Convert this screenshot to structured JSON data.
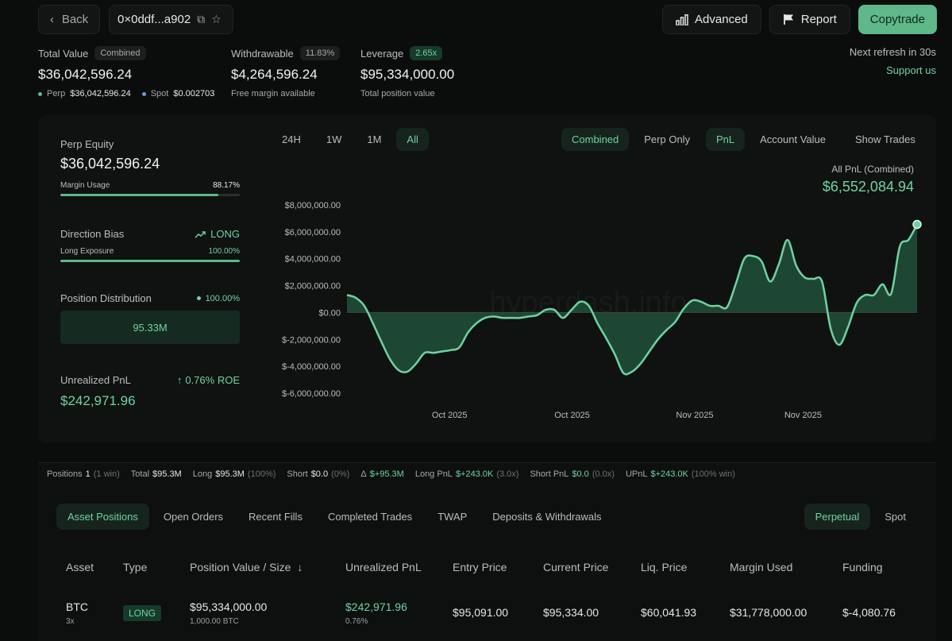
{
  "topbar": {
    "back_label": "Back",
    "address": "0×0ddf...a902",
    "advanced_label": "Advanced",
    "report_label": "Report",
    "copytrade_label": "Copytrade"
  },
  "summary": {
    "total_value_label": "Total Value",
    "total_value_chip": "Combined",
    "total_value": "$36,042,596.24",
    "perp_label": "Perp",
    "perp_value": "$36,042,596.24",
    "spot_label": "Spot",
    "spot_value": "$0.002703",
    "withdrawable_label": "Withdrawable",
    "withdrawable_chip": "11.83%",
    "withdrawable_value": "$4,264,596.24",
    "withdrawable_sub": "Free margin available",
    "leverage_label": "Leverage",
    "leverage_chip": "2.65x",
    "leverage_value": "$95,334,000.00",
    "leverage_sub": "Total position value",
    "refresh_text": "Next refresh in 30s",
    "support_label": "Support us"
  },
  "left_panel": {
    "perp_equity_label": "Perp Equity",
    "perp_equity_value": "$36,042,596.24",
    "margin_usage_label": "Margin Usage",
    "margin_usage_value": "88.17%",
    "margin_usage_fraction": 0.8817,
    "direction_bias_label": "Direction Bias",
    "direction_bias_value": "LONG",
    "long_exposure_label": "Long Exposure",
    "long_exposure_value": "100.00%",
    "long_exposure_fraction": 1.0,
    "position_distribution_label": "Position Distribution",
    "position_distribution_pct": "100.00%",
    "position_distribution_value": "95.33M",
    "unrealized_pnl_label": "Unrealized PnL",
    "roe_value": "0.76% ROE",
    "unrealized_pnl_value": "$242,971.96"
  },
  "chart_controls": {
    "ranges": [
      "24H",
      "1W",
      "1M",
      "All"
    ],
    "active_range": "All",
    "mode_combined": "Combined",
    "mode_perp_only": "Perp Only",
    "metric_pnl": "PnL",
    "metric_account_value": "Account Value",
    "show_trades": "Show Trades",
    "headline_label": "All PnL (Combined)",
    "headline_value": "$6,552,084.94",
    "watermark": "hyperdash.info"
  },
  "chart_data": {
    "type": "area",
    "ylim": [
      -6000000,
      8000000
    ],
    "y_ticks": [
      8000000,
      6000000,
      4000000,
      2000000,
      0,
      -2000000,
      -4000000,
      -6000000
    ],
    "y_tick_labels": [
      "$8,000,000.00",
      "$6,000,000.00",
      "$4,000,000.00",
      "$2,000,000.00",
      "$0.00",
      "$-2,000,000.00",
      "$-4,000,000.00",
      "$-6,000,000.00"
    ],
    "x_tick_labels": [
      "Oct 2025",
      "Oct 2025",
      "Nov 2025",
      "Nov 2025"
    ],
    "x_tick_index": [
      0.18,
      0.395,
      0.61,
      0.8
    ],
    "line_color": "#6fd3a1",
    "series": [
      {
        "values": [
          1300000,
          1100000,
          500000,
          -800000,
          -2200000,
          -3500000,
          -4300000,
          -4400000,
          -3800000,
          -3000000,
          -3000000,
          -2900000,
          -2800000,
          -2600000,
          -1500000,
          -800000,
          -400000,
          -300000,
          -400000,
          -400000,
          -400000,
          -300000,
          -200000,
          200000,
          200000,
          -400000,
          200000,
          800000,
          500000,
          -800000,
          -1900000,
          -3100000,
          -4500000,
          -4400000,
          -3800000,
          -2900000,
          -2000000,
          -1300000,
          -700000,
          300000,
          900000,
          800000,
          500000,
          500000,
          400000,
          2100000,
          4000000,
          4200000,
          3800000,
          2300000,
          3600000,
          5400000,
          3500000,
          2600000,
          2500000,
          2300000,
          -1200000,
          -2400000,
          -1100000,
          700000,
          1300000,
          1300000,
          2100000,
          1400000,
          4900000,
          5400000,
          6550000
        ]
      }
    ]
  },
  "strip": {
    "positions_label": "Positions",
    "positions_value": "1",
    "positions_win": "(1 win)",
    "total_label": "Total",
    "total_value": "$95.3M",
    "long_label": "Long",
    "long_value": "$95.3M",
    "long_pct": "(100%)",
    "short_label": "Short",
    "short_value": "$0.0",
    "short_pct": "(0%)",
    "delta_label": "Δ",
    "delta_value": "$+95.3M",
    "long_pnl_label": "Long PnL",
    "long_pnl_value": "$+243.0K",
    "long_pnl_x": "(3.0x)",
    "short_pnl_label": "Short PnL",
    "short_pnl_value": "$0.0",
    "short_pnl_x": "(0.0x)",
    "upnl_label": "UPnL",
    "upnl_value": "$+243.0K",
    "upnl_win": "(100% win)"
  },
  "tabs": {
    "items": [
      "Asset Positions",
      "Open Orders",
      "Recent Fills",
      "Completed Trades",
      "TWAP",
      "Deposits & Withdrawals"
    ],
    "right": [
      "Perpetual",
      "Spot"
    ]
  },
  "table": {
    "headers": [
      "Asset",
      "Type",
      "Position Value / Size",
      "Unrealized PnL",
      "Entry Price",
      "Current Price",
      "Liq. Price",
      "Margin Used",
      "Funding"
    ],
    "row": {
      "asset": "BTC",
      "leverage": "3x",
      "type": "LONG",
      "position_value": "$95,334,000.00",
      "size": "1,000.00 BTC",
      "upnl": "$242,971.96",
      "upnl_pct": "0.76%",
      "entry": "$95,091.00",
      "current": "$95,334.00",
      "liq": "$60,041.93",
      "margin": "$31,778,000.00",
      "funding": "$-4,080.76"
    }
  }
}
